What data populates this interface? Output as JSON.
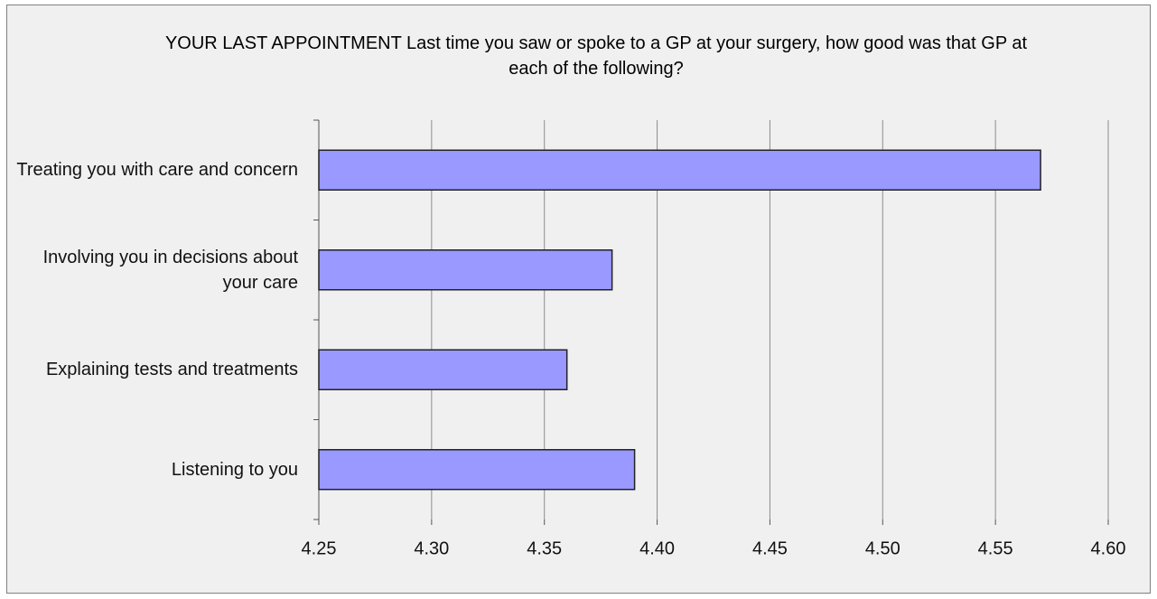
{
  "chart_data": {
    "type": "bar",
    "orientation": "horizontal",
    "title": "YOUR LAST APPOINTMENT Last time you saw or spoke to a GP at your surgery, how good was that GP at each of the following?",
    "categories": [
      "Treating you with care and concern",
      "Involving you in decisions about your care",
      "Explaining tests and treatments",
      "Listening to you"
    ],
    "values": [
      4.57,
      4.38,
      4.36,
      4.39
    ],
    "color": "#9999ff",
    "xlim": [
      4.25,
      4.6
    ],
    "xticks": [
      4.25,
      {
        "value": 4.3,
        "label": "4.30"
      },
      4.35,
      {
        "value": 4.4,
        "label": "4.40"
      },
      4.45,
      {
        "value": 4.5,
        "label": "4.50"
      },
      4.55,
      {
        "value": 4.6,
        "label": "4.60"
      }
    ],
    "grid": true
  }
}
